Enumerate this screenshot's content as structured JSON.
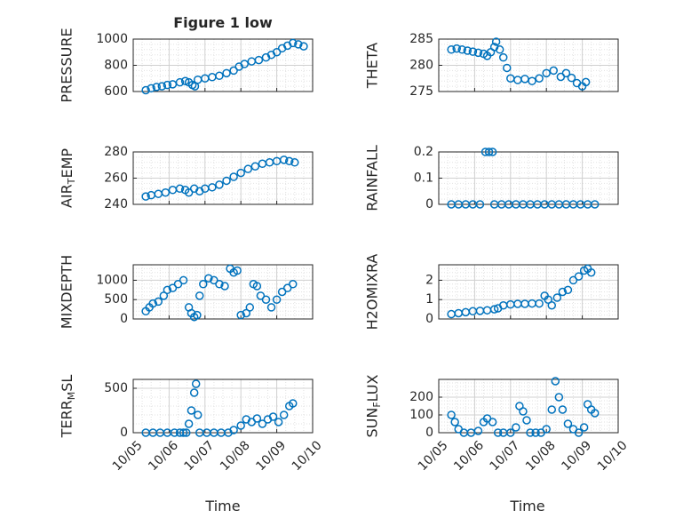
{
  "figure": {
    "title": "Figure 1 low",
    "xlabel": "Time",
    "x_tick_labels": [
      "10/05",
      "10/06",
      "10/07",
      "10/08",
      "10/09",
      "10/10"
    ]
  },
  "colors": {
    "marker": "#0072BD",
    "axis": "#262626",
    "grid": "#d0d0d0",
    "minor_grid": "#e2e2e2"
  },
  "chart_data": [
    {
      "type": "scatter",
      "ylabel": "PRESSURE",
      "ylim": [
        600,
        1000
      ],
      "yticks": [
        600,
        800,
        1000
      ],
      "x_unit": "days",
      "grid": true,
      "points": [
        [
          0.35,
          610
        ],
        [
          0.5,
          625
        ],
        [
          0.65,
          635
        ],
        [
          0.8,
          640
        ],
        [
          0.95,
          650
        ],
        [
          1.1,
          655
        ],
        [
          1.3,
          670
        ],
        [
          1.45,
          680
        ],
        [
          1.55,
          670
        ],
        [
          1.65,
          650
        ],
        [
          1.72,
          640
        ],
        [
          1.8,
          690
        ],
        [
          2.0,
          700
        ],
        [
          2.2,
          710
        ],
        [
          2.4,
          720
        ],
        [
          2.6,
          740
        ],
        [
          2.8,
          760
        ],
        [
          2.95,
          790
        ],
        [
          3.1,
          810
        ],
        [
          3.3,
          830
        ],
        [
          3.5,
          840
        ],
        [
          3.7,
          860
        ],
        [
          3.85,
          880
        ],
        [
          4.0,
          900
        ],
        [
          4.15,
          930
        ],
        [
          4.3,
          950
        ],
        [
          4.45,
          970
        ],
        [
          4.6,
          960
        ],
        [
          4.75,
          945
        ]
      ]
    },
    {
      "type": "scatter",
      "ylabel": "THETA",
      "ylim": [
        275,
        285
      ],
      "yticks": [
        275,
        280,
        285
      ],
      "x_unit": "days",
      "grid": true,
      "points": [
        [
          0.35,
          283
        ],
        [
          0.5,
          283.2
        ],
        [
          0.65,
          283
        ],
        [
          0.8,
          282.8
        ],
        [
          0.95,
          282.6
        ],
        [
          1.1,
          282.4
        ],
        [
          1.25,
          282.2
        ],
        [
          1.35,
          281.8
        ],
        [
          1.45,
          282.5
        ],
        [
          1.55,
          283.5
        ],
        [
          1.6,
          284.5
        ],
        [
          1.7,
          283
        ],
        [
          1.8,
          281.5
        ],
        [
          1.9,
          279.5
        ],
        [
          2.0,
          277.5
        ],
        [
          2.2,
          277.2
        ],
        [
          2.4,
          277.4
        ],
        [
          2.6,
          277
        ],
        [
          2.8,
          277.5
        ],
        [
          3.0,
          278.5
        ],
        [
          3.2,
          279
        ],
        [
          3.4,
          277.8
        ],
        [
          3.55,
          278.5
        ],
        [
          3.7,
          277.6
        ],
        [
          3.85,
          276.6
        ],
        [
          4.0,
          276
        ],
        [
          4.1,
          276.8
        ]
      ]
    },
    {
      "type": "scatter",
      "ylabel": "AIR_TEMP",
      "ylim": [
        240,
        280
      ],
      "yticks": [
        240,
        260,
        280
      ],
      "x_unit": "days",
      "grid": true,
      "points": [
        [
          0.35,
          246
        ],
        [
          0.5,
          247
        ],
        [
          0.7,
          248
        ],
        [
          0.9,
          249
        ],
        [
          1.1,
          251
        ],
        [
          1.3,
          252
        ],
        [
          1.45,
          251
        ],
        [
          1.55,
          249
        ],
        [
          1.7,
          252
        ],
        [
          1.85,
          250
        ],
        [
          2.0,
          252
        ],
        [
          2.2,
          253
        ],
        [
          2.4,
          255
        ],
        [
          2.6,
          258
        ],
        [
          2.8,
          261
        ],
        [
          3.0,
          264
        ],
        [
          3.2,
          267
        ],
        [
          3.4,
          269
        ],
        [
          3.6,
          271
        ],
        [
          3.8,
          272
        ],
        [
          4.0,
          273
        ],
        [
          4.2,
          274
        ],
        [
          4.35,
          273
        ],
        [
          4.5,
          272
        ]
      ]
    },
    {
      "type": "scatter",
      "ylabel": "RAINFALL",
      "ylim": [
        0,
        0.2
      ],
      "yticks": [
        0,
        0.1,
        0.2
      ],
      "x_unit": "days",
      "grid": true,
      "points": [
        [
          0.35,
          0
        ],
        [
          0.55,
          0
        ],
        [
          0.75,
          0
        ],
        [
          0.95,
          0
        ],
        [
          1.15,
          0
        ],
        [
          1.3,
          0.2
        ],
        [
          1.4,
          0.2
        ],
        [
          1.5,
          0.2
        ],
        [
          1.55,
          0
        ],
        [
          1.75,
          0
        ],
        [
          1.95,
          0
        ],
        [
          2.15,
          0
        ],
        [
          2.35,
          0
        ],
        [
          2.55,
          0
        ],
        [
          2.75,
          0
        ],
        [
          2.95,
          0
        ],
        [
          3.15,
          0
        ],
        [
          3.35,
          0
        ],
        [
          3.55,
          0
        ],
        [
          3.75,
          0
        ],
        [
          3.95,
          0
        ],
        [
          4.15,
          0
        ],
        [
          4.35,
          0
        ]
      ]
    },
    {
      "type": "scatter",
      "ylabel": "MIXDEPTH",
      "ylim": [
        0,
        1400
      ],
      "yticks": [
        0,
        500,
        1000
      ],
      "x_unit": "days",
      "grid": true,
      "points": [
        [
          0.35,
          200
        ],
        [
          0.45,
          300
        ],
        [
          0.55,
          400
        ],
        [
          0.7,
          450
        ],
        [
          0.85,
          600
        ],
        [
          0.95,
          750
        ],
        [
          1.1,
          800
        ],
        [
          1.25,
          900
        ],
        [
          1.4,
          1000
        ],
        [
          1.55,
          300
        ],
        [
          1.62,
          150
        ],
        [
          1.7,
          50
        ],
        [
          1.78,
          100
        ],
        [
          1.85,
          600
        ],
        [
          1.95,
          900
        ],
        [
          2.1,
          1050
        ],
        [
          2.25,
          1000
        ],
        [
          2.4,
          900
        ],
        [
          2.55,
          850
        ],
        [
          2.7,
          1300
        ],
        [
          2.8,
          1200
        ],
        [
          2.9,
          1250
        ],
        [
          3.0,
          100
        ],
        [
          3.15,
          150
        ],
        [
          3.25,
          300
        ],
        [
          3.35,
          900
        ],
        [
          3.45,
          850
        ],
        [
          3.55,
          600
        ],
        [
          3.7,
          500
        ],
        [
          3.85,
          300
        ],
        [
          4.0,
          500
        ],
        [
          4.15,
          700
        ],
        [
          4.3,
          800
        ],
        [
          4.45,
          900
        ]
      ]
    },
    {
      "type": "scatter",
      "ylabel": "H2OMIXRA",
      "ylim": [
        0,
        2.8
      ],
      "yticks": [
        0,
        1,
        2
      ],
      "x_unit": "days",
      "grid": true,
      "points": [
        [
          0.35,
          0.25
        ],
        [
          0.55,
          0.3
        ],
        [
          0.75,
          0.35
        ],
        [
          0.95,
          0.4
        ],
        [
          1.15,
          0.42
        ],
        [
          1.35,
          0.45
        ],
        [
          1.55,
          0.5
        ],
        [
          1.65,
          0.55
        ],
        [
          1.8,
          0.7
        ],
        [
          2.0,
          0.75
        ],
        [
          2.2,
          0.78
        ],
        [
          2.4,
          0.78
        ],
        [
          2.6,
          0.8
        ],
        [
          2.8,
          0.8
        ],
        [
          2.95,
          1.2
        ],
        [
          3.05,
          1.0
        ],
        [
          3.15,
          0.7
        ],
        [
          3.3,
          1.1
        ],
        [
          3.45,
          1.4
        ],
        [
          3.6,
          1.5
        ],
        [
          3.75,
          2.0
        ],
        [
          3.9,
          2.2
        ],
        [
          4.05,
          2.5
        ],
        [
          4.15,
          2.6
        ],
        [
          4.25,
          2.4
        ]
      ]
    },
    {
      "type": "scatter",
      "ylabel": "TERR_MSL",
      "ylim": [
        0,
        600
      ],
      "yticks": [
        0,
        500
      ],
      "x_unit": "days",
      "grid": true,
      "points": [
        [
          0.35,
          0
        ],
        [
          0.55,
          0
        ],
        [
          0.75,
          0
        ],
        [
          0.95,
          0
        ],
        [
          1.15,
          0
        ],
        [
          1.3,
          0
        ],
        [
          1.4,
          0
        ],
        [
          1.48,
          0
        ],
        [
          1.55,
          100
        ],
        [
          1.62,
          250
        ],
        [
          1.7,
          450
        ],
        [
          1.75,
          550
        ],
        [
          1.8,
          200
        ],
        [
          1.85,
          0
        ],
        [
          2.05,
          0
        ],
        [
          2.25,
          0
        ],
        [
          2.45,
          0
        ],
        [
          2.65,
          0
        ],
        [
          2.8,
          30
        ],
        [
          3.0,
          80
        ],
        [
          3.15,
          150
        ],
        [
          3.3,
          120
        ],
        [
          3.45,
          160
        ],
        [
          3.6,
          100
        ],
        [
          3.75,
          150
        ],
        [
          3.9,
          180
        ],
        [
          4.05,
          120
        ],
        [
          4.2,
          200
        ],
        [
          4.35,
          300
        ],
        [
          4.45,
          330
        ]
      ]
    },
    {
      "type": "scatter",
      "ylabel": "SUN_FLUX",
      "ylim": [
        0,
        300
      ],
      "yticks": [
        0,
        100,
        200
      ],
      "x_unit": "days",
      "grid": true,
      "points": [
        [
          0.35,
          100
        ],
        [
          0.45,
          60
        ],
        [
          0.55,
          20
        ],
        [
          0.7,
          0
        ],
        [
          0.9,
          0
        ],
        [
          1.1,
          10
        ],
        [
          1.25,
          60
        ],
        [
          1.35,
          80
        ],
        [
          1.5,
          60
        ],
        [
          1.65,
          0
        ],
        [
          1.8,
          0
        ],
        [
          2.0,
          0
        ],
        [
          2.15,
          30
        ],
        [
          2.25,
          150
        ],
        [
          2.35,
          120
        ],
        [
          2.45,
          70
        ],
        [
          2.55,
          0
        ],
        [
          2.7,
          0
        ],
        [
          2.85,
          0
        ],
        [
          3.0,
          20
        ],
        [
          3.15,
          130
        ],
        [
          3.25,
          290
        ],
        [
          3.35,
          200
        ],
        [
          3.45,
          130
        ],
        [
          3.6,
          50
        ],
        [
          3.75,
          20
        ],
        [
          3.9,
          0
        ],
        [
          4.05,
          30
        ],
        [
          4.15,
          160
        ],
        [
          4.25,
          130
        ],
        [
          4.35,
          110
        ]
      ]
    }
  ]
}
